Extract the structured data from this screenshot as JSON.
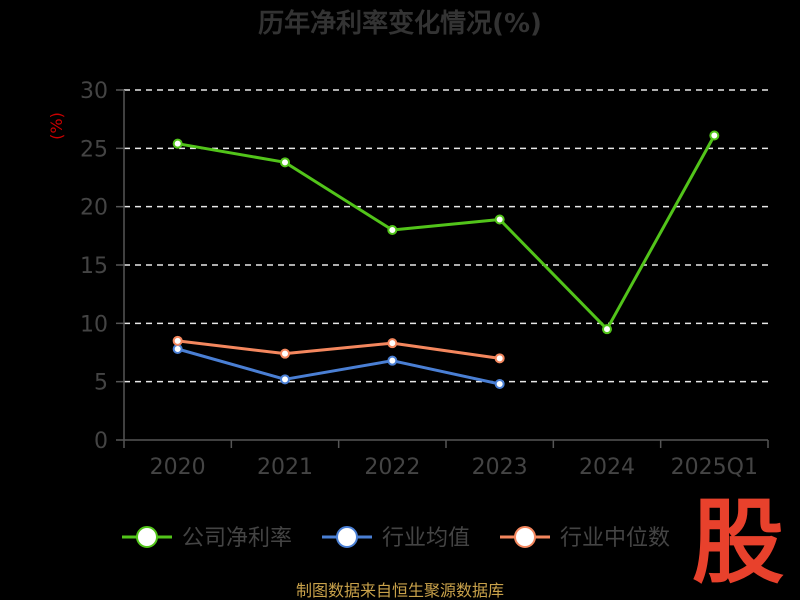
{
  "chart_data": {
    "type": "line",
    "title": "历年净利率变化情况(%)",
    "ylabel": "(%)",
    "categories": [
      "2020",
      "2021",
      "2022",
      "2023",
      "2024",
      "2025Q1"
    ],
    "ylim": [
      0,
      30
    ],
    "yticks": [
      "0",
      "5",
      "10",
      "15",
      "20",
      "25",
      "30"
    ],
    "grid": true,
    "legend_position": "bottom",
    "series": [
      {
        "name": "公司净利率",
        "values": [
          25.4,
          23.8,
          18.0,
          18.9,
          9.5,
          26.1
        ],
        "color": "#52c41a"
      },
      {
        "name": "行业均值",
        "values": [
          7.8,
          5.2,
          6.8,
          4.8,
          null,
          null
        ],
        "color": "#4a7fd4"
      },
      {
        "name": "行业中位数",
        "values": [
          8.5,
          7.4,
          8.3,
          7.0,
          null,
          null
        ],
        "color": "#f4875e"
      }
    ]
  },
  "footer": {
    "source": "制图数据来自恒生聚源数据库"
  },
  "logo": {
    "text": "股"
  }
}
